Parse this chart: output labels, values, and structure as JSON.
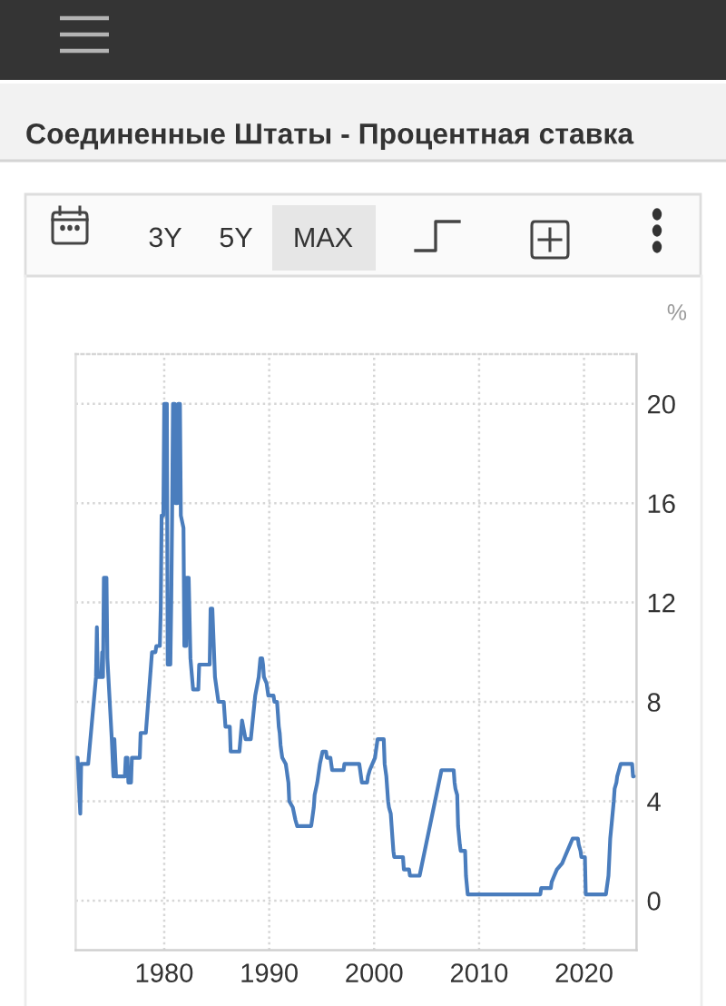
{
  "chart_data": {
    "type": "line",
    "title": "Соединенные Штаты - Процентная ставка",
    "ylabel": "%",
    "annotations": [
      "3Y",
      "5Y",
      "MAX"
    ],
    "color": "#4a7dbd",
    "x": [
      "1971-08",
      "1971-10",
      "1972-01",
      "1972-02",
      "1972-10",
      "1973-07",
      "1973-08",
      "1973-09",
      "1974-01",
      "1974-02",
      "1974-03",
      "1974-04",
      "1974-07",
      "1974-08",
      "1975-01",
      "1975-03",
      "1975-04",
      "1975-06",
      "1976-04",
      "1976-05",
      "1976-07",
      "1976-08",
      "1976-11",
      "1976-12",
      "1977-09",
      "1977-10",
      "1978-04",
      "1978-11",
      "1979-03",
      "1979-04",
      "1979-08",
      "1979-09",
      "1979-10",
      "1979-12",
      "1980-01",
      "1980-04",
      "1980-05",
      "1980-08",
      "1980-09",
      "1980-10",
      "1980-11",
      "1981-01",
      "1981-02",
      "1981-04",
      "1981-05",
      "1981-07",
      "1981-08",
      "1981-11",
      "1981-12",
      "1982-01",
      "1982-02",
      "1982-03",
      "1982-05",
      "1982-07",
      "1982-10",
      "1983-04",
      "1983-05",
      "1984-05",
      "1984-06",
      "1984-08",
      "1984-11",
      "1985-03",
      "1985-09",
      "1985-11",
      "1986-04",
      "1986-05",
      "1987-03",
      "1987-06",
      "1987-10",
      "1988-04",
      "1988-09",
      "1989-01",
      "1989-03",
      "1989-05",
      "1989-06",
      "1989-07",
      "1989-10",
      "1989-11",
      "1989-12",
      "1990-06",
      "1990-07",
      "1990-10",
      "1990-11",
      "1990-12",
      "1991-01",
      "1991-02",
      "1991-03",
      "1991-04",
      "1991-08",
      "1991-09",
      "1991-10",
      "1991-11",
      "1991-12",
      "1992-04",
      "1992-07",
      "1992-09",
      "1994-01",
      "1994-02",
      "1994-04",
      "1994-05",
      "1994-08",
      "1994-11",
      "1995-02",
      "1995-06",
      "1995-07",
      "1995-11",
      "1995-12",
      "1996-01",
      "1997-02",
      "1997-03",
      "1998-08",
      "1998-09",
      "1998-10",
      "1998-11",
      "1999-05",
      "1999-06",
      "1999-08",
      "1999-11",
      "2000-02",
      "2000-03",
      "2000-05",
      "2000-12",
      "2001-01",
      "2001-03",
      "2001-04",
      "2001-05",
      "2001-06",
      "2001-08",
      "2001-09",
      "2001-10",
      "2001-11",
      "2001-12",
      "2002-10",
      "2002-11",
      "2003-05",
      "2003-06",
      "2004-05",
      "2006-06",
      "2007-08",
      "2007-09",
      "2007-10",
      "2007-12",
      "2008-01",
      "2008-03",
      "2008-04",
      "2008-09",
      "2008-10",
      "2008-12",
      "2015-11",
      "2015-12",
      "2016-11",
      "2016-12",
      "2017-03",
      "2017-06",
      "2017-12",
      "2018-03",
      "2018-06",
      "2018-09",
      "2018-12",
      "2019-06",
      "2019-07",
      "2019-09",
      "2019-10",
      "2020-02",
      "2020-03",
      "2022-02",
      "2022-03",
      "2022-05",
      "2022-06",
      "2022-07",
      "2022-09",
      "2022-11",
      "2022-12",
      "2023-02",
      "2023-03",
      "2023-05",
      "2023-07",
      "2024-08",
      "2024-09",
      "2024-10"
    ],
    "values": [
      5.75,
      5.75,
      3.5,
      5.5,
      5.5,
      9.0,
      11.0,
      9.0,
      9.0,
      10.0,
      9.0,
      13.0,
      13.0,
      9.75,
      6.5,
      5.0,
      6.5,
      5.0,
      5.0,
      5.75,
      5.75,
      4.75,
      4.75,
      5.75,
      5.75,
      6.75,
      6.75,
      10.0,
      10.0,
      10.25,
      10.25,
      11.75,
      15.5,
      15.5,
      20.0,
      20.0,
      9.5,
      9.5,
      12.0,
      15.5,
      20.0,
      20.0,
      16.0,
      16.0,
      20.0,
      20.0,
      15.5,
      15.0,
      10.25,
      13.0,
      10.25,
      13.0,
      13.0,
      9.75,
      8.5,
      8.5,
      9.5,
      9.5,
      11.75,
      11.75,
      9.0,
      8.0,
      8.0,
      7.0,
      7.0,
      6.0,
      6.0,
      7.25,
      6.5,
      6.5,
      8.25,
      9.0,
      9.75,
      9.75,
      9.5,
      9.0,
      8.75,
      8.5,
      8.25,
      8.25,
      8.0,
      8.0,
      7.5,
      7.0,
      6.75,
      6.25,
      6.0,
      5.75,
      5.5,
      5.25,
      5.0,
      4.75,
      4.0,
      3.75,
      3.25,
      3.0,
      3.0,
      3.25,
      3.75,
      4.25,
      4.75,
      5.5,
      6.0,
      6.0,
      5.75,
      5.75,
      5.5,
      5.25,
      5.25,
      5.5,
      5.5,
      5.25,
      5.0,
      4.75,
      4.75,
      5.0,
      5.25,
      5.5,
      5.75,
      6.0,
      6.5,
      6.5,
      5.5,
      5.0,
      4.5,
      4.0,
      3.75,
      3.5,
      3.0,
      2.5,
      2.0,
      1.75,
      1.75,
      1.25,
      1.25,
      1.0,
      1.0,
      5.25,
      5.25,
      4.75,
      4.5,
      4.25,
      3.0,
      2.25,
      2.0,
      2.0,
      1.0,
      0.25,
      0.25,
      0.5,
      0.5,
      0.75,
      1.0,
      1.25,
      1.5,
      1.75,
      2.0,
      2.25,
      2.5,
      2.5,
      2.25,
      2.0,
      1.75,
      1.75,
      0.25,
      0.25,
      0.5,
      1.0,
      1.75,
      2.5,
      3.25,
      4.0,
      4.5,
      4.75,
      5.0,
      5.25,
      5.5,
      5.5,
      5.0,
      5.0
    ],
    "xlim": [
      "1971-07-25",
      "2025-01-01"
    ],
    "xticks": [
      "1980",
      "1990",
      "2000",
      "2010",
      "2020"
    ],
    "ylim": [
      -2,
      22
    ],
    "yticks": [
      0,
      4,
      8,
      12,
      16,
      20
    ],
    "grid": true
  }
}
